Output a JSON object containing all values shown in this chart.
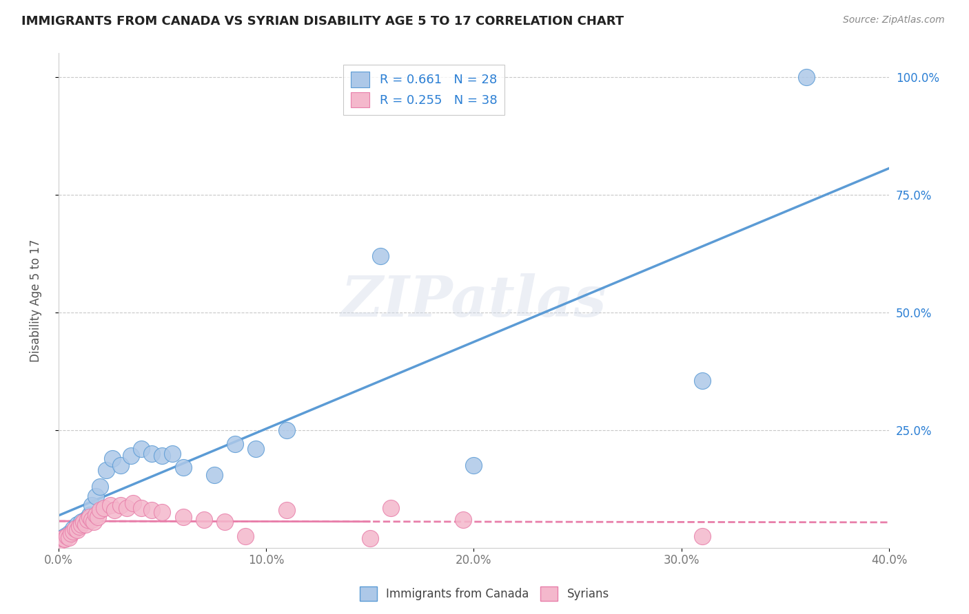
{
  "title": "IMMIGRANTS FROM CANADA VS SYRIAN DISABILITY AGE 5 TO 17 CORRELATION CHART",
  "source": "Source: ZipAtlas.com",
  "ylabel": "Disability Age 5 to 17",
  "xlim": [
    0.0,
    0.4
  ],
  "ylim": [
    0.0,
    1.05
  ],
  "xtick_labels": [
    "0.0%",
    "10.0%",
    "20.0%",
    "30.0%",
    "40.0%"
  ],
  "xtick_vals": [
    0.0,
    0.1,
    0.2,
    0.3,
    0.4
  ],
  "ytick_vals": [
    0.25,
    0.5,
    0.75,
    1.0
  ],
  "right_ytick_labels": [
    "25.0%",
    "50.0%",
    "75.0%",
    "100.0%"
  ],
  "canada_color": "#adc8e8",
  "canada_edge": "#5b9bd5",
  "syrian_color": "#f4b8cc",
  "syrian_edge": "#e87faa",
  "canada_R": 0.661,
  "canada_N": 28,
  "syrian_R": 0.255,
  "syrian_N": 38,
  "canada_scatter_x": [
    0.001,
    0.003,
    0.005,
    0.007,
    0.009,
    0.011,
    0.013,
    0.015,
    0.016,
    0.018,
    0.02,
    0.023,
    0.026,
    0.03,
    0.035,
    0.04,
    0.045,
    0.05,
    0.055,
    0.06,
    0.075,
    0.085,
    0.095,
    0.11,
    0.155,
    0.2,
    0.31,
    0.36
  ],
  "canada_scatter_y": [
    0.02,
    0.025,
    0.03,
    0.04,
    0.05,
    0.055,
    0.06,
    0.07,
    0.09,
    0.11,
    0.13,
    0.165,
    0.19,
    0.175,
    0.195,
    0.21,
    0.2,
    0.195,
    0.2,
    0.17,
    0.155,
    0.22,
    0.21,
    0.25,
    0.62,
    0.175,
    0.355,
    1.0
  ],
  "syrian_scatter_x": [
    0.001,
    0.002,
    0.003,
    0.004,
    0.005,
    0.006,
    0.007,
    0.008,
    0.009,
    0.01,
    0.011,
    0.012,
    0.013,
    0.014,
    0.015,
    0.016,
    0.017,
    0.018,
    0.019,
    0.02,
    0.022,
    0.025,
    0.027,
    0.03,
    0.033,
    0.036,
    0.04,
    0.045,
    0.05,
    0.06,
    0.07,
    0.08,
    0.09,
    0.11,
    0.15,
    0.16,
    0.195,
    0.31
  ],
  "syrian_scatter_y": [
    0.015,
    0.02,
    0.018,
    0.025,
    0.022,
    0.03,
    0.035,
    0.04,
    0.038,
    0.045,
    0.05,
    0.055,
    0.05,
    0.06,
    0.065,
    0.06,
    0.055,
    0.07,
    0.065,
    0.08,
    0.085,
    0.09,
    0.08,
    0.09,
    0.085,
    0.095,
    0.085,
    0.08,
    0.075,
    0.065,
    0.06,
    0.055,
    0.025,
    0.08,
    0.02,
    0.085,
    0.06,
    0.025
  ],
  "watermark": "ZIPatlas",
  "legend_blue_label": "Immigrants from Canada",
  "legend_pink_label": "Syrians",
  "grid_color": "#c8c8c8",
  "background_color": "#ffffff",
  "title_color": "#222222",
  "axis_label_color": "#555555",
  "r_label_color": "#2b7fd4",
  "tick_color": "#777777"
}
